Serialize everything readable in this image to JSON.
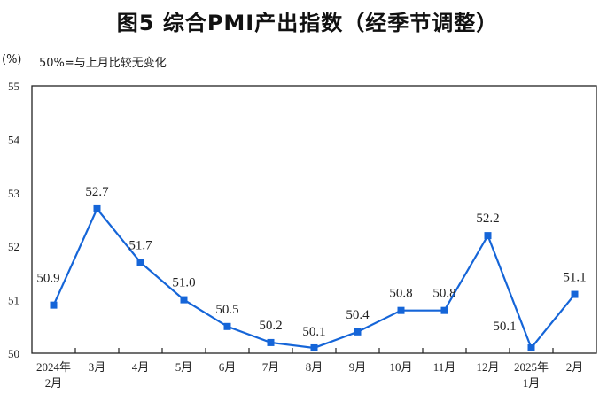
{
  "chart_data": {
    "type": "line",
    "title": "图5 综合PMI产出指数（经季节调整）",
    "ylabel": "(%)",
    "annotation": "50%=与上月比较无变化",
    "categories": [
      [
        "2024年",
        "2月"
      ],
      [
        "3月"
      ],
      [
        "4月"
      ],
      [
        "5月"
      ],
      [
        "6月"
      ],
      [
        "7月"
      ],
      [
        "8月"
      ],
      [
        "9月"
      ],
      [
        "10月"
      ],
      [
        "11月"
      ],
      [
        "12月"
      ],
      [
        "2025年",
        "1月"
      ],
      [
        "2月"
      ]
    ],
    "values": [
      50.9,
      52.7,
      51.7,
      51.0,
      50.5,
      50.2,
      50.1,
      50.4,
      50.8,
      50.8,
      52.2,
      50.1,
      51.1
    ],
    "data_labels": [
      "50.9",
      "52.7",
      "51.7",
      "51.0",
      "50.5",
      "50.2",
      "50.1",
      "50.4",
      "50.8",
      "50.8",
      "52.2",
      "50.1",
      "51.1"
    ],
    "ylim": [
      50,
      55
    ],
    "yticks": [
      "50",
      "51",
      "52",
      "53",
      "54",
      "55"
    ],
    "grid": false,
    "legend": "none",
    "color": "#1565d8"
  }
}
